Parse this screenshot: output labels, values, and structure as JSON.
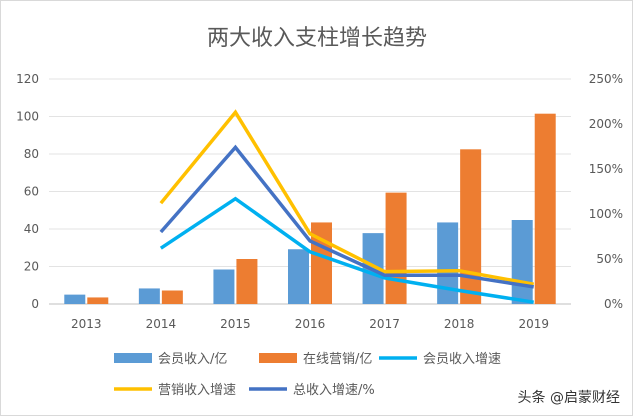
{
  "chart_data": {
    "type": "bar+line",
    "title": "两大收入支柱增长趋势",
    "categories": [
      "2013",
      "2014",
      "2015",
      "2016",
      "2017",
      "2018",
      "2019"
    ],
    "left_axis": {
      "min": 0,
      "max": 120,
      "step": 20,
      "ticks": [
        "0",
        "20",
        "40",
        "60",
        "80",
        "100",
        "120"
      ]
    },
    "right_axis": {
      "min": 0,
      "max": 2.5,
      "step": 0.5,
      "ticks": [
        "0%",
        "50%",
        "100%",
        "150%",
        "200%",
        "250%"
      ]
    },
    "bar_series": [
      {
        "name": "会员收入/亿",
        "color": "#5b9bd5",
        "values": [
          5,
          8.3,
          18.4,
          29.2,
          37.8,
          43.5,
          44.8
        ]
      },
      {
        "name": "在线营销/亿",
        "color": "#ed7d31",
        "values": [
          3.5,
          7.2,
          24,
          43.5,
          59.4,
          82.5,
          101.5
        ]
      }
    ],
    "line_series": [
      {
        "name": "会员收入增速",
        "color": "#00b0f0",
        "values": [
          null,
          0.62,
          1.17,
          0.58,
          0.29,
          0.15,
          0.02
        ]
      },
      {
        "name": "营销收入增速",
        "color": "#ffc000",
        "values": [
          null,
          1.12,
          2.13,
          0.78,
          0.36,
          0.37,
          0.22
        ]
      },
      {
        "name": "总收入增速/%",
        "color": "#4472c4",
        "values": [
          null,
          0.8,
          1.74,
          0.7,
          0.32,
          0.32,
          0.19
        ]
      }
    ],
    "grid": true,
    "legend_position": "bottom"
  },
  "watermark": "头条 @启蒙财经"
}
